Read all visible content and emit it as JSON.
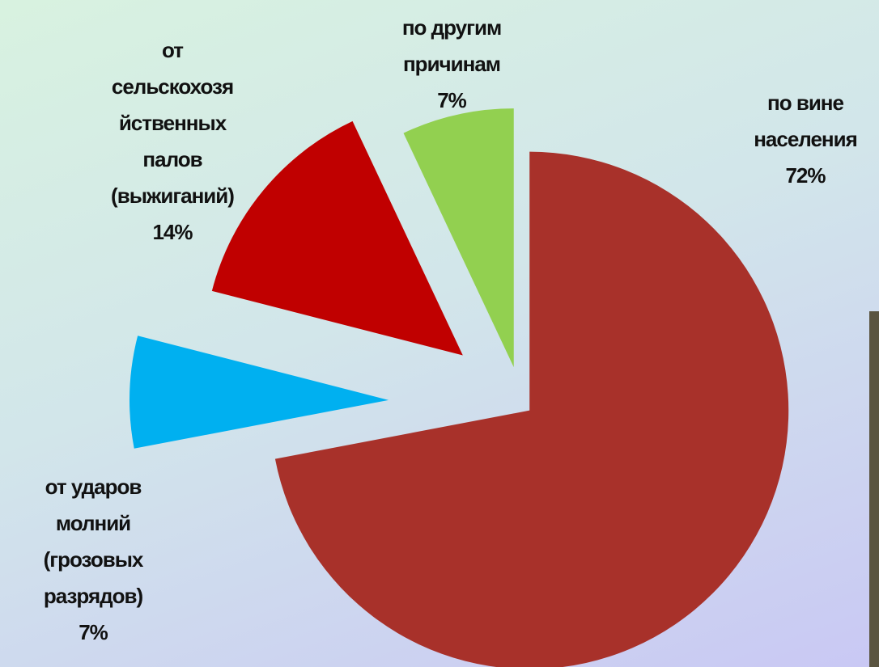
{
  "chart_data": {
    "type": "pie",
    "categories": [
      "по вине\nнаселения",
      "от ударов\nмолний\n(грозовых\nразрядов)",
      "от\nсельскохозя\nйственных\nпалов\n(выжиганий)",
      "по другим\nпричинам"
    ],
    "values": [
      72,
      7,
      14,
      7
    ],
    "value_labels": [
      "72%",
      "7%",
      "14%",
      "7%"
    ],
    "colors": [
      "#a8312a",
      "#00b0f0",
      "#c00000",
      "#92d050"
    ]
  }
}
